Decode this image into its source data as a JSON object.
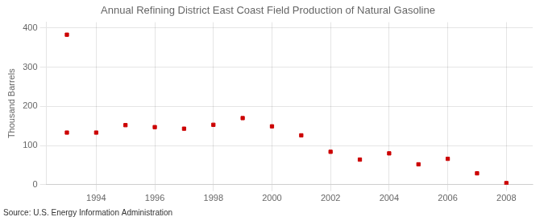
{
  "chart_data": {
    "type": "scatter",
    "title": "Annual Refining District East Coast Field Production of Natural Gasoline",
    "ylabel": "Thousand Barrels",
    "annotations": [
      "Source: U.S. Energy Information Administration"
    ],
    "x": [
      1993,
      1993,
      1994,
      1995,
      1996,
      1997,
      1998,
      1999,
      2000,
      2001,
      2002,
      2003,
      2004,
      2005,
      2006,
      2007,
      2008
    ],
    "values": [
      383,
      133,
      133,
      152,
      147,
      143,
      153,
      170,
      149,
      126,
      84,
      64,
      80,
      52,
      66,
      29,
      4
    ],
    "color": "#cc0000",
    "marker": "square",
    "xlim": [
      1992.3,
      2008.9
    ],
    "ylim": [
      0,
      415
    ],
    "xticks": [
      1994,
      1996,
      1998,
      2000,
      2002,
      2004,
      2006,
      2008
    ],
    "yticks": [
      0,
      100,
      200,
      300,
      400
    ],
    "grid": true
  }
}
